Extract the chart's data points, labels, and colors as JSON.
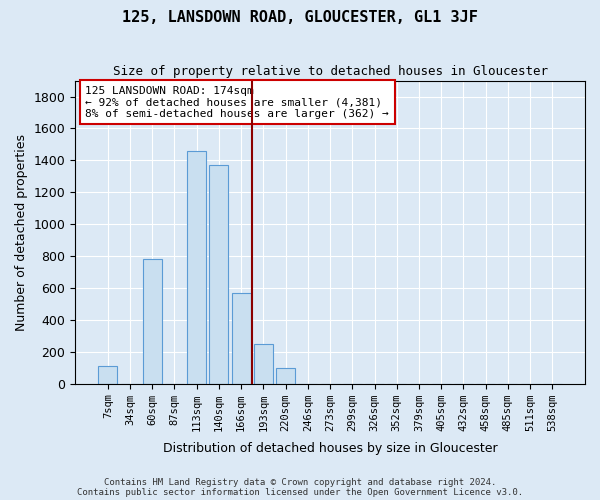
{
  "title": "125, LANSDOWN ROAD, GLOUCESTER, GL1 3JF",
  "subtitle": "Size of property relative to detached houses in Gloucester",
  "xlabel": "Distribution of detached houses by size in Gloucester",
  "ylabel": "Number of detached properties",
  "bar_labels": [
    "7sqm",
    "34sqm",
    "60sqm",
    "87sqm",
    "113sqm",
    "140sqm",
    "166sqm",
    "193sqm",
    "220sqm",
    "246sqm",
    "273sqm",
    "299sqm",
    "326sqm",
    "352sqm",
    "379sqm",
    "405sqm",
    "432sqm",
    "458sqm",
    "485sqm",
    "511sqm",
    "538sqm"
  ],
  "bar_values": [
    110,
    0,
    780,
    0,
    1460,
    1370,
    570,
    250,
    100,
    0,
    0,
    0,
    0,
    0,
    0,
    0,
    0,
    0,
    0,
    0,
    0
  ],
  "bar_color": "#c9dff0",
  "bar_edge_color": "#5b9bd5",
  "background_color": "#dce9f5",
  "plot_bg_color": "#dce9f5",
  "grid_color": "#ffffff",
  "vline_x": 7,
  "vline_color": "#8b0000",
  "annotation_text": "125 LANSDOWN ROAD: 174sqm\n← 92% of detached houses are smaller (4,381)\n8% of semi-detached houses are larger (362) →",
  "annotation_box_color": "#ffffff",
  "annotation_box_edge": "#cc0000",
  "ylim": [
    0,
    1900
  ],
  "yticks": [
    0,
    200,
    400,
    600,
    800,
    1000,
    1200,
    1400,
    1600,
    1800
  ],
  "footer1": "Contains HM Land Registry data © Crown copyright and database right 2024.",
  "footer2": "Contains public sector information licensed under the Open Government Licence v3.0."
}
